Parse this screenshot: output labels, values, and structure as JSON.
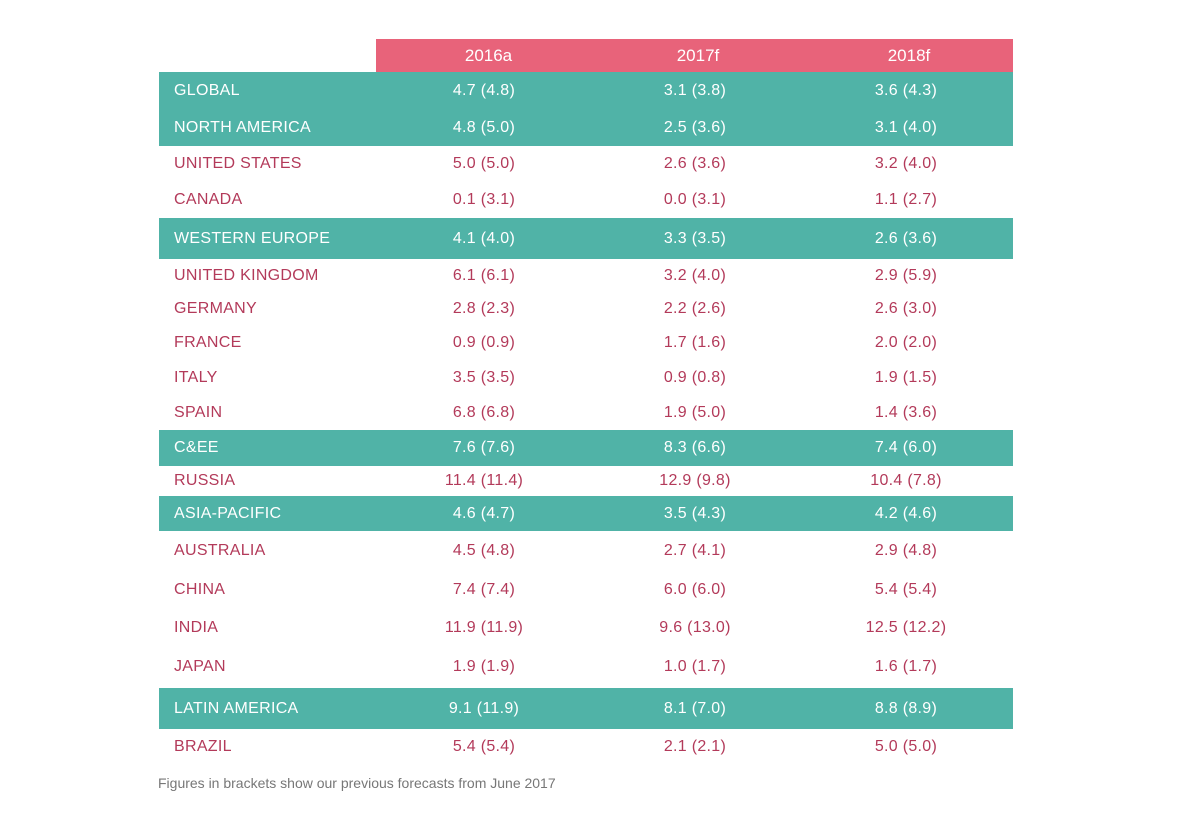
{
  "chart_data": {
    "type": "table",
    "columns": [
      "2016a",
      "2017f",
      "2018f"
    ],
    "rows": [
      {
        "label": "GLOBAL",
        "values": [
          "4.7 (4.8)",
          "3.1 (3.8)",
          "3.6 (4.3)"
        ],
        "highlight": true
      },
      {
        "label": "NORTH AMERICA",
        "values": [
          "4.8 (5.0)",
          "2.5 (3.6)",
          "3.1 (4.0)"
        ],
        "highlight": true
      },
      {
        "label": "UNITED STATES",
        "values": [
          "5.0 (5.0)",
          "2.6 (3.6)",
          "3.2 (4.0)"
        ],
        "highlight": false
      },
      {
        "label": "CANADA",
        "values": [
          "0.1 (3.1)",
          "0.0 (3.1)",
          "1.1 (2.7)"
        ],
        "highlight": false
      },
      {
        "label": "WESTERN EUROPE",
        "values": [
          "4.1 (4.0)",
          "3.3 (3.5)",
          "2.6 (3.6)"
        ],
        "highlight": true
      },
      {
        "label": "UNITED KINGDOM",
        "values": [
          "6.1 (6.1)",
          "3.2 (4.0)",
          "2.9 (5.9)"
        ],
        "highlight": false
      },
      {
        "label": "GERMANY",
        "values": [
          "2.8 (2.3)",
          "2.2 (2.6)",
          "2.6 (3.0)"
        ],
        "highlight": false
      },
      {
        "label": "FRANCE",
        "values": [
          "0.9 (0.9)",
          "1.7 (1.6)",
          "2.0 (2.0)"
        ],
        "highlight": false
      },
      {
        "label": "ITALY",
        "values": [
          "3.5 (3.5)",
          "0.9 (0.8)",
          "1.9 (1.5)"
        ],
        "highlight": false
      },
      {
        "label": "SPAIN",
        "values": [
          "6.8 (6.8)",
          "1.9 (5.0)",
          "1.4 (3.6)"
        ],
        "highlight": false
      },
      {
        "label": "C&EE",
        "values": [
          "7.6 (7.6)",
          "8.3 (6.6)",
          "7.4 (6.0)"
        ],
        "highlight": true
      },
      {
        "label": "RUSSIA",
        "values": [
          "11.4 (11.4)",
          "12.9 (9.8)",
          "10.4 (7.8)"
        ],
        "highlight": false
      },
      {
        "label": "ASIA-PACIFIC",
        "values": [
          "4.6 (4.7)",
          "3.5 (4.3)",
          "4.2 (4.6)"
        ],
        "highlight": true
      },
      {
        "label": "AUSTRALIA",
        "values": [
          "4.5 (4.8)",
          "2.7 (4.1)",
          "2.9 (4.8)"
        ],
        "highlight": false
      },
      {
        "label": "CHINA",
        "values": [
          "7.4 (7.4)",
          "6.0 (6.0)",
          "5.4 (5.4)"
        ],
        "highlight": false
      },
      {
        "label": "INDIA",
        "values": [
          "11.9 (11.9)",
          "9.6 (13.0)",
          "12.5 (12.2)"
        ],
        "highlight": false
      },
      {
        "label": "JAPAN",
        "values": [
          "1.9 (1.9)",
          "1.0 (1.7)",
          "1.6 (1.7)"
        ],
        "highlight": false
      },
      {
        "label": "LATIN AMERICA",
        "values": [
          "9.1 (11.9)",
          "8.1 (7.0)",
          "8.8 (8.9)"
        ],
        "highlight": true
      },
      {
        "label": "BRAZIL",
        "values": [
          "5.4 (5.4)",
          "2.1 (2.1)",
          "5.0 (5.0)"
        ],
        "highlight": false
      }
    ]
  },
  "footnote": "Figures in brackets show our previous forecasts from June 2017",
  "colors": {
    "header": "#e8637a",
    "highlight": "#50b3a7",
    "text": "#b33a5a"
  }
}
